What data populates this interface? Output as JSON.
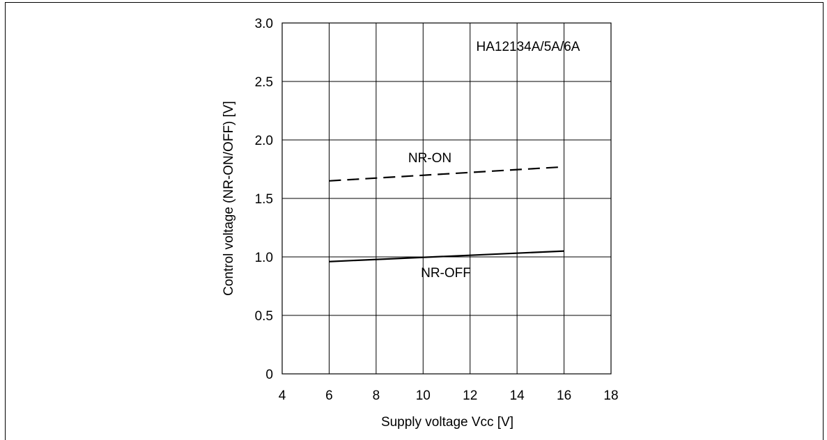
{
  "chart_data": {
    "type": "line",
    "title": "",
    "annotation": "HA12134A/5A/6A",
    "xlabel": "Supply voltage Vcc [V]",
    "ylabel": "Control voltage (NR-ON/OFF)  [V]",
    "xlim": [
      4,
      18
    ],
    "ylim": [
      0,
      3.0
    ],
    "x_ticks": [
      4,
      6,
      8,
      10,
      12,
      14,
      16,
      18
    ],
    "x_tick_labels": [
      "4",
      "6",
      "8",
      "10",
      "12",
      "14",
      "16",
      "18"
    ],
    "y_ticks": [
      0,
      0.5,
      1.0,
      1.5,
      2.0,
      2.5,
      3.0
    ],
    "y_tick_labels": [
      "0",
      "0.5",
      "1.0",
      "1.5",
      "2.0",
      "2.5",
      "3.0"
    ],
    "grid": true,
    "series": [
      {
        "name": "NR-ON",
        "style": "dashed",
        "x": [
          6,
          16
        ],
        "values": [
          1.65,
          1.77
        ]
      },
      {
        "name": "NR-OFF",
        "style": "solid",
        "x": [
          6,
          16
        ],
        "values": [
          0.96,
          1.05
        ]
      }
    ]
  }
}
